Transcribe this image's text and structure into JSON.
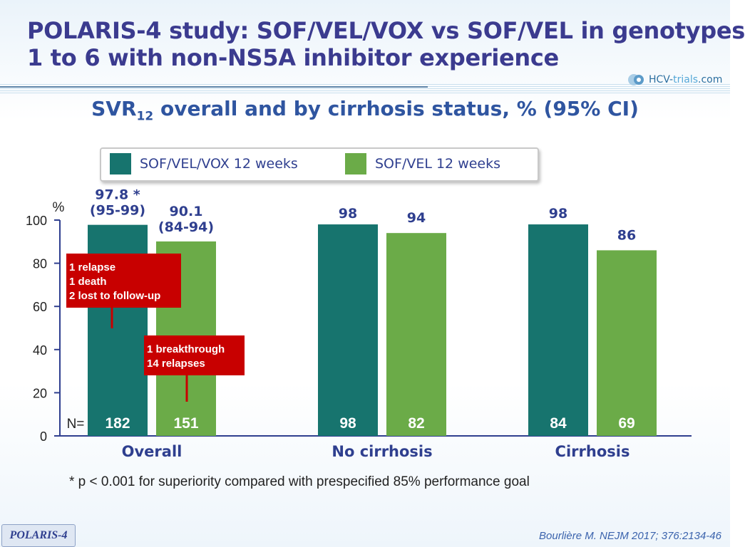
{
  "title_lines": [
    "POLARIS-4 study: SOF/VEL/VOX vs SOF/VEL in genotypes",
    "1 to 6 with non-NS5A inhibitor experience"
  ],
  "logo": {
    "main": "HCV-",
    "accent": "trials",
    "suffix": ".com"
  },
  "subtitle": {
    "prefix": "SVR",
    "sub": "12",
    "rest": " overall and by cirrhosis status, % (95% CI)"
  },
  "colors": {
    "title": "#3b3b8f",
    "series_vox": "#17746e",
    "series_vel": "#6bab48",
    "annotation_box": "#c80000",
    "axis": "#2f3f8f"
  },
  "chart_data": {
    "type": "bar",
    "title": "SVR12 overall and by cirrhosis status, % (95% CI)",
    "ylabel": "%",
    "ylim": [
      0,
      100
    ],
    "yticks": [
      "0",
      "20",
      "40",
      "60",
      "80",
      "100"
    ],
    "categories": [
      "Overall",
      "No cirrhosis",
      "Cirrhosis"
    ],
    "n_label": "N=",
    "series": [
      {
        "name": "SOF/VEL/VOX 12 weeks",
        "color": "#17746e",
        "values": [
          97.8,
          98,
          98
        ],
        "labels": [
          "97.8 *",
          "98",
          "98"
        ],
        "ci": [
          "(95-99)",
          "",
          ""
        ],
        "n": [
          "182",
          "98",
          "84"
        ]
      },
      {
        "name": "SOF/VEL 12 weeks",
        "color": "#6bab48",
        "values": [
          90.1,
          94,
          86
        ],
        "labels": [
          "90.1",
          "94",
          "86"
        ],
        "ci": [
          "(84-94)",
          "",
          ""
        ],
        "n": [
          "151",
          "82",
          "69"
        ]
      }
    ],
    "annotations": [
      {
        "series": 0,
        "category": 0,
        "lines": [
          "1 relapse",
          "1 death",
          "2 lost to follow-up"
        ]
      },
      {
        "series": 1,
        "category": 0,
        "lines": [
          "1 breakthrough",
          "14 relapses"
        ]
      }
    ]
  },
  "footnote": "* p < 0.001 for superiority compared with prespecified 85% performance goal",
  "footer_badge": "POLARIS-4",
  "citation": "Bourlière M. NEJM 2017; 376:2134-46"
}
